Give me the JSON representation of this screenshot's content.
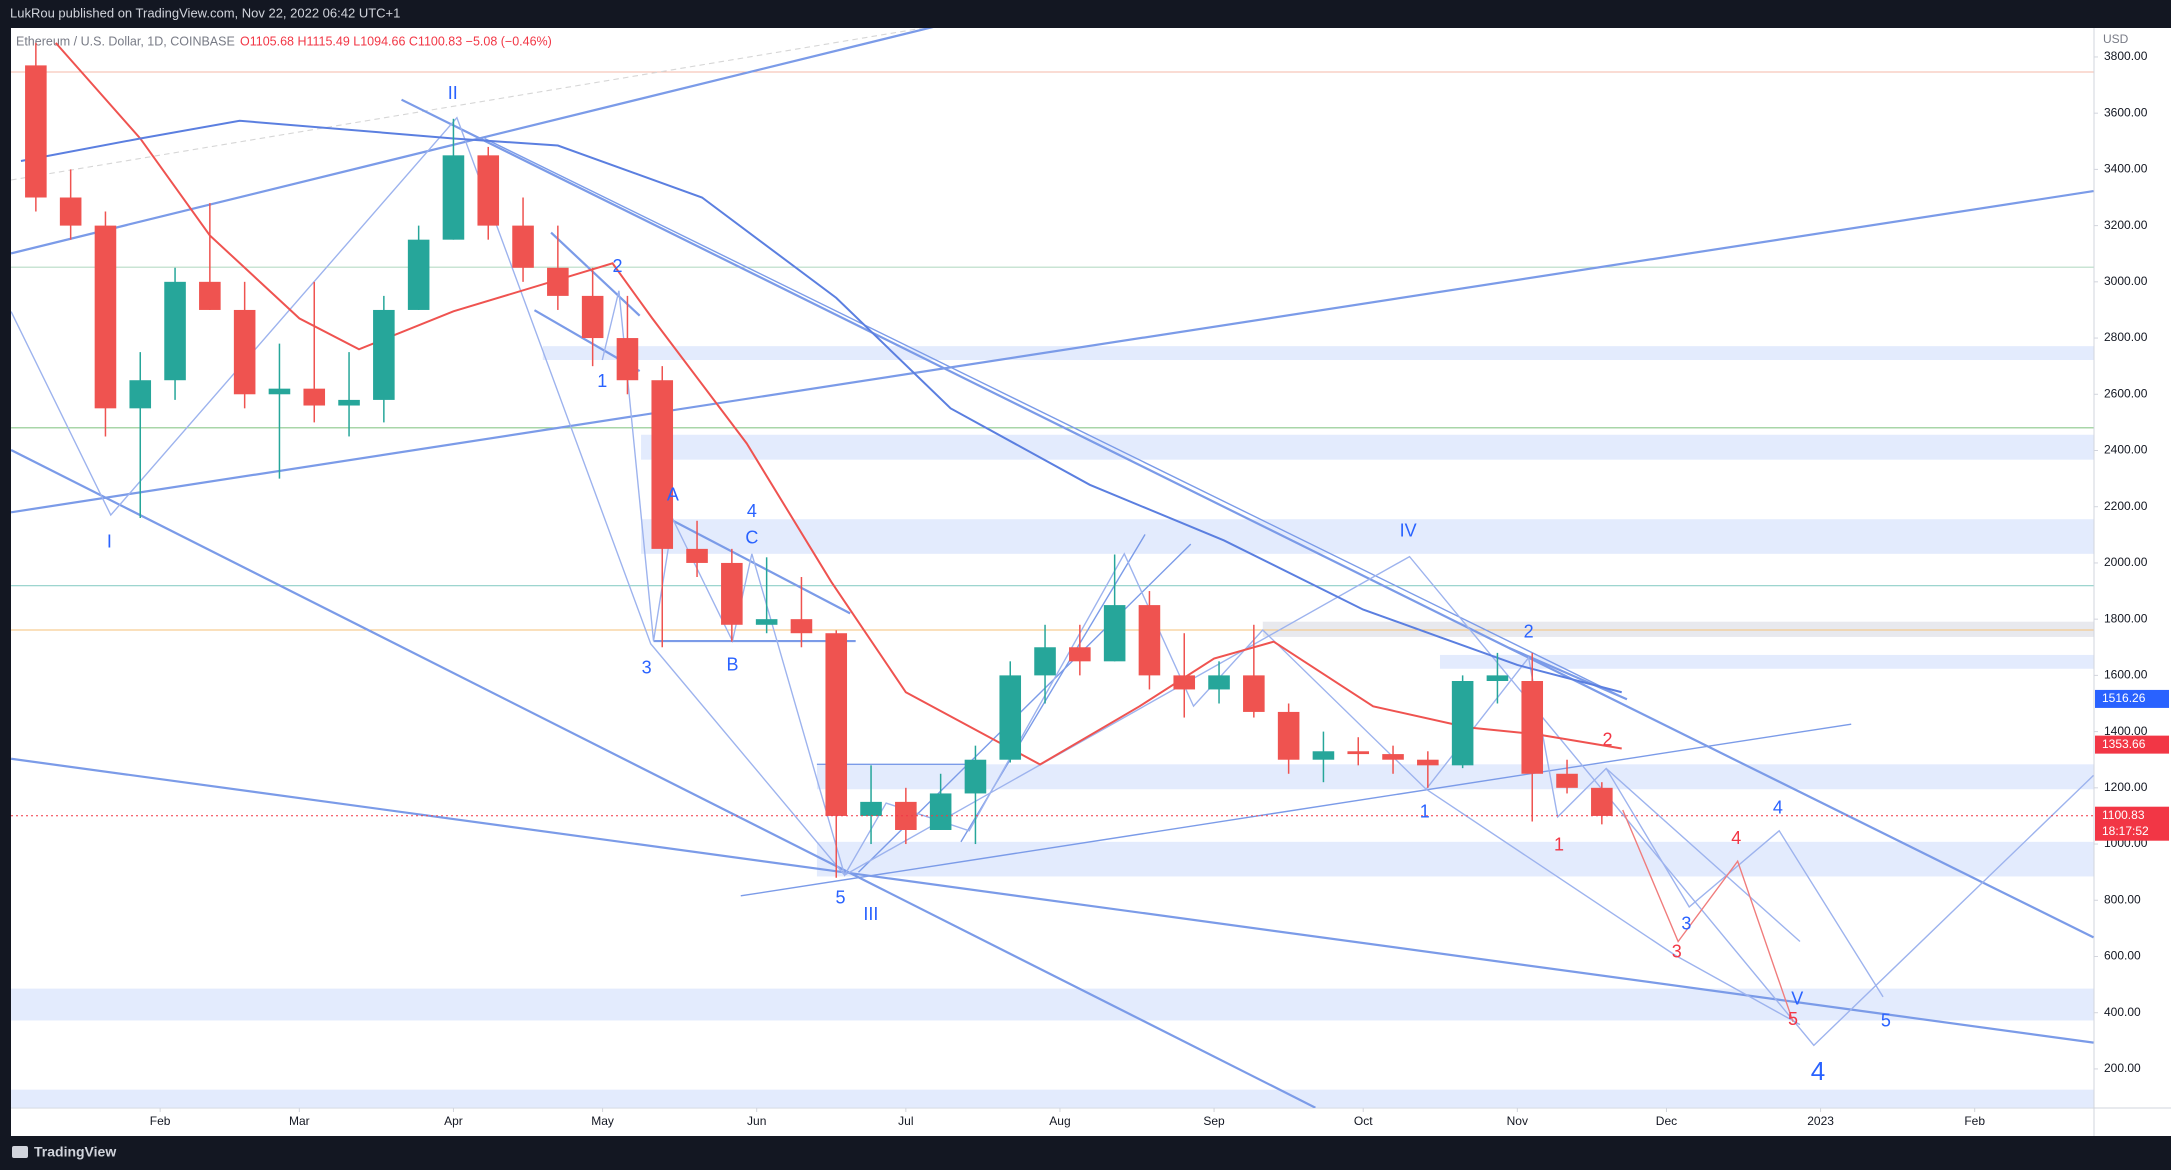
{
  "header": {
    "publisher": "LukRou published on TradingView.com, Nov 22, 2022 06:42 UTC+1",
    "brand": "TradingView"
  },
  "chart_data": {
    "type": "candlestick",
    "title": "Ethereum / U.S. Dollar, 1D, COINBASE",
    "subtitle": "O1105.68 H1115.49 L1094.66 C1100.83 −5.08 (−0.46%)",
    "currency": "USD",
    "up_color": "#26a69a",
    "down_color": "#ef5350",
    "x": [
      3,
      10,
      17,
      24,
      31,
      38,
      45,
      52,
      59,
      66,
      73,
      80,
      87,
      94,
      101,
      108,
      115,
      122,
      129,
      136,
      143,
      150,
      157,
      164,
      171,
      178,
      185,
      192,
      199,
      206,
      213,
      220,
      227,
      234,
      241,
      248,
      255,
      262,
      269,
      276,
      283,
      290,
      297,
      304,
      311,
      318
    ],
    "open": [
      3770,
      3300,
      3200,
      2550,
      2650,
      3000,
      2900,
      2600,
      2620,
      2560,
      2580,
      2900,
      3150,
      3450,
      3200,
      3050,
      2950,
      2800,
      2650,
      2050,
      2000,
      1780,
      1800,
      1750,
      1100,
      1150,
      1050,
      1180,
      1300,
      1600,
      1700,
      1650,
      1850,
      1600,
      1550,
      1600,
      1470,
      1300,
      1330,
      1320,
      1300,
      1280,
      1580,
      1580,
      1250,
      1200
    ],
    "high": [
      3850,
      3400,
      3250,
      2750,
      3050,
      3280,
      3000,
      2780,
      3000,
      2750,
      2950,
      3200,
      3580,
      3480,
      3300,
      3200,
      3050,
      2950,
      2700,
      2150,
      2050,
      2020,
      1950,
      1760,
      1280,
      1200,
      1250,
      1350,
      1650,
      1780,
      1780,
      2030,
      1900,
      1750,
      1650,
      1780,
      1500,
      1400,
      1380,
      1350,
      1330,
      1600,
      1680,
      1680,
      1300,
      1220
    ],
    "low": [
      3250,
      3150,
      2450,
      2160,
      2580,
      2900,
      2550,
      2300,
      2500,
      2450,
      2500,
      2900,
      3150,
      3150,
      3000,
      2900,
      2700,
      2600,
      1700,
      1950,
      1720,
      1750,
      1700,
      880,
      1000,
      1000,
      1050,
      1000,
      1290,
      1500,
      1600,
      1650,
      1550,
      1450,
      1500,
      1450,
      1250,
      1220,
      1280,
      1250,
      1200,
      1270,
      1500,
      1080,
      1180,
      1070
    ],
    "close": [
      3300,
      3200,
      2550,
      2650,
      3000,
      2900,
      2600,
      2620,
      2560,
      2580,
      2900,
      3150,
      3450,
      3200,
      3050,
      2950,
      2800,
      2650,
      2050,
      2000,
      1780,
      1800,
      1750,
      1100,
      1150,
      1050,
      1180,
      1300,
      1600,
      1700,
      1650,
      1850,
      1600,
      1550,
      1600,
      1470,
      1300,
      1330,
      1320,
      1300,
      1280,
      1580,
      1600,
      1250,
      1200,
      1100
    ],
    "moving_averages": [
      {
        "color": "#ef5350",
        "x": [
          10,
          27,
          41,
          59,
          71,
          90,
          122,
          130,
          149,
          166,
          181,
          208,
          228,
          243,
          255,
          275,
          294,
          308,
          325
        ],
        "values": [
          3850,
          3510,
          3165,
          2870,
          2760,
          2895,
          3066,
          2870,
          2425,
          1933,
          1540,
          1283,
          1490,
          1660,
          1720,
          1490,
          1415,
          1390,
          1340
        ]
      },
      {
        "color": "#5b7fe0",
        "x": [
          3,
          27,
          47,
          90,
          111,
          140,
          167,
          190,
          218,
          245,
          273,
          304,
          325
        ],
        "values": [
          3430,
          3510,
          3573,
          3510,
          3485,
          3300,
          2943,
          2550,
          2278,
          2080,
          1834,
          1637,
          1540
        ]
      }
    ],
    "xlim": [
      1,
      420
    ],
    "xticks": [
      {
        "value": 31,
        "label": "Feb"
      },
      {
        "value": 59,
        "label": "Mar"
      },
      {
        "value": 90,
        "label": "Apr"
      },
      {
        "value": 120,
        "label": "May"
      },
      {
        "value": 151,
        "label": "Jun"
      },
      {
        "value": 181,
        "label": "Jul"
      },
      {
        "value": 212,
        "label": "Aug"
      },
      {
        "value": 243,
        "label": "Sep"
      },
      {
        "value": 273,
        "label": "Oct"
      },
      {
        "value": 304,
        "label": "Nov"
      },
      {
        "value": 334,
        "label": "Dec"
      },
      {
        "value": 365,
        "label": "2023"
      },
      {
        "value": 396,
        "label": "Feb"
      }
    ],
    "ylim": [
      61,
      3903
    ],
    "yticks": [
      {
        "value": 200,
        "label": "200.00"
      },
      {
        "value": 400,
        "label": "400.00"
      },
      {
        "value": 600,
        "label": "600.00"
      },
      {
        "value": 800,
        "label": "800.00"
      },
      {
        "value": 1000,
        "label": "1000.00"
      },
      {
        "value": 1200,
        "label": "1200.00"
      },
      {
        "value": 1400,
        "label": "1400.00"
      },
      {
        "value": 1600,
        "label": "1600.00"
      },
      {
        "value": 1800,
        "label": "1800.00"
      },
      {
        "value": 2000,
        "label": "2000.00"
      },
      {
        "value": 2200,
        "label": "2200.00"
      },
      {
        "value": 2400,
        "label": "2400.00"
      },
      {
        "value": 2600,
        "label": "2600.00"
      },
      {
        "value": 2800,
        "label": "2800.00"
      },
      {
        "value": 3000,
        "label": "3000.00"
      },
      {
        "value": 3200,
        "label": "3200.00"
      },
      {
        "value": 3400,
        "label": "3400.00"
      },
      {
        "value": 3600,
        "label": "3600.00"
      },
      {
        "value": 3800,
        "label": "3800.00"
      }
    ],
    "grid": false,
    "price_tags": [
      {
        "value": 1516.26,
        "color": "#2962ff"
      },
      {
        "value": 1353.66,
        "color": "#f23645"
      },
      {
        "value": 1100.83,
        "color": "#f23645",
        "countdown": "18:17:52"
      }
    ],
    "annotations": [
      {
        "text": "I",
        "color": "#2962ff"
      },
      {
        "text": "II",
        "color": "#2962ff"
      },
      {
        "text": "1",
        "color": "#2962ff"
      },
      {
        "text": "2",
        "color": "#2962ff"
      },
      {
        "text": "A",
        "color": "#2962ff"
      },
      {
        "text": "4",
        "color": "#2962ff"
      },
      {
        "text": "C",
        "color": "#2962ff"
      },
      {
        "text": "3",
        "color": "#2962ff"
      },
      {
        "text": "B",
        "color": "#2962ff"
      },
      {
        "text": "5",
        "color": "#2962ff"
      },
      {
        "text": "III",
        "color": "#2962ff"
      },
      {
        "text": "IV",
        "color": "#2962ff"
      },
      {
        "text": "1",
        "color": "#2962ff"
      },
      {
        "text": "2",
        "color": "#2962ff"
      },
      {
        "text": "2",
        "color": "#f23645"
      },
      {
        "text": "1",
        "color": "#f23645"
      },
      {
        "text": "3",
        "color": "#2962ff"
      },
      {
        "text": "3",
        "color": "#f23645"
      },
      {
        "text": "4",
        "color": "#f23645"
      },
      {
        "text": "4",
        "color": "#2962ff"
      },
      {
        "text": "V",
        "color": "#2962ff"
      },
      {
        "text": "5",
        "color": "#f23645"
      },
      {
        "text": "5",
        "color": "#2962ff"
      },
      {
        "text": "4",
        "color": "#2962ff"
      }
    ]
  }
}
